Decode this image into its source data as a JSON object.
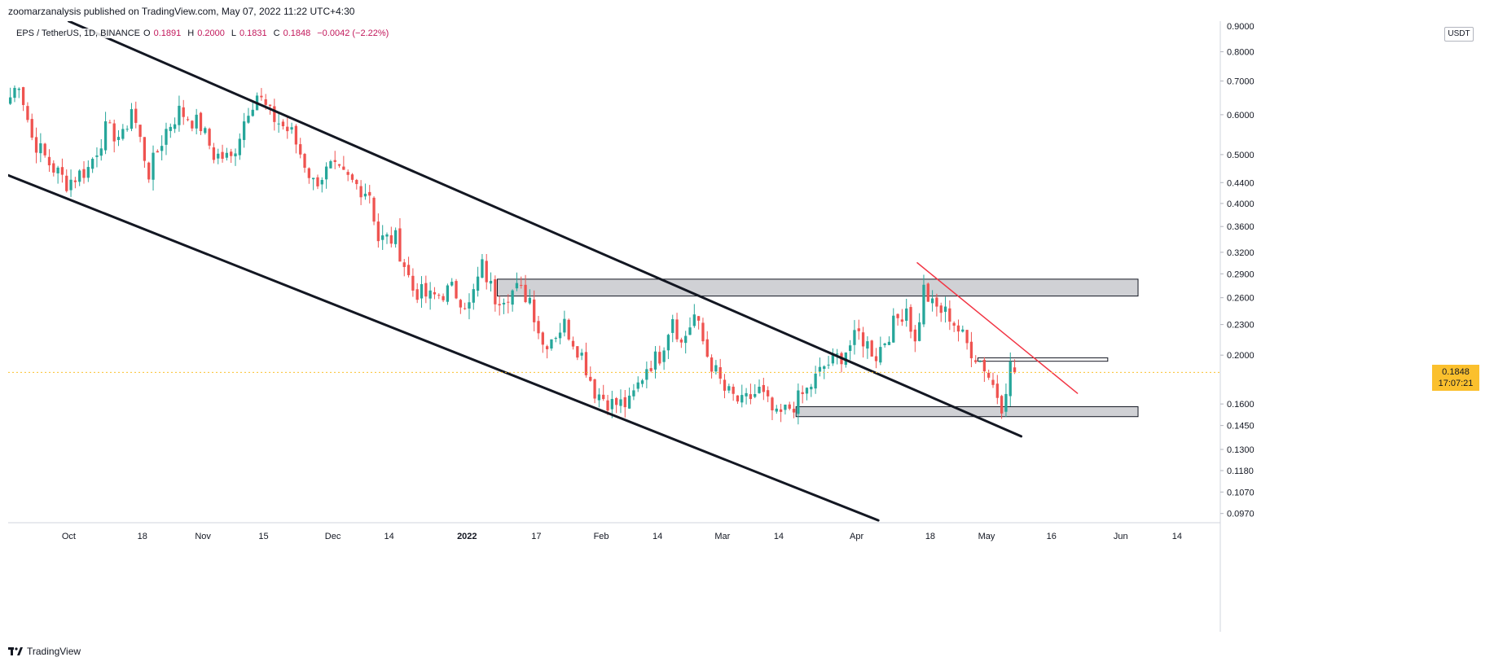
{
  "header": {
    "published_by": "zoomarzanalysis published on TradingView.com, May 07, 2022 11:22 UTC+4:30"
  },
  "legend": {
    "symbol": "EPS / TetherUS, 1D, BINANCE",
    "open_label": "O",
    "open": "0.1891",
    "high_label": "H",
    "high": "0.2000",
    "low_label": "L",
    "low": "0.1831",
    "close_label": "C",
    "close": "0.1848",
    "change": "−0.0042 (−2.22%)"
  },
  "price_axis": {
    "currency": "USDT",
    "ticks": [
      "0.8000",
      "0.7000",
      "0.6000",
      "0.5000",
      "0.4400",
      "0.4000",
      "0.3600",
      "0.3200",
      "0.2900",
      "0.2600",
      "0.2300",
      "0.2000",
      "0.1600",
      "0.1450",
      "0.1300",
      "0.1180",
      "0.1070",
      "0.0970"
    ],
    "top_partial": "0.9000"
  },
  "last_price": {
    "value": "0.1848",
    "countdown": "17:07:21",
    "color": "#fbc02d"
  },
  "footer": {
    "brand": "TradingView"
  },
  "chart_data": {
    "type": "candlestick",
    "symbol": "EPS/USDT",
    "interval": "1D",
    "exchange": "BINANCE",
    "y_scale": "log",
    "ylim": [
      0.093,
      0.92
    ],
    "x_range": [
      "2021-09-17",
      "2022-06-24"
    ],
    "up_color": "#26a69a",
    "down_color": "#ef5350",
    "tick_labels_x": [
      {
        "date": "2021-10-01",
        "label": "Oct"
      },
      {
        "date": "2021-10-18",
        "label": "18"
      },
      {
        "date": "2021-11-01",
        "label": "Nov"
      },
      {
        "date": "2021-11-15",
        "label": "15"
      },
      {
        "date": "2021-12-01",
        "label": "Dec"
      },
      {
        "date": "2021-12-14",
        "label": "14"
      },
      {
        "date": "2022-01-01",
        "label": "2022"
      },
      {
        "date": "2022-01-17",
        "label": "17"
      },
      {
        "date": "2022-02-01",
        "label": "Feb"
      },
      {
        "date": "2022-02-14",
        "label": "14"
      },
      {
        "date": "2022-03-01",
        "label": "Mar"
      },
      {
        "date": "2022-03-14",
        "label": "14"
      },
      {
        "date": "2022-04-01",
        "label": "Apr"
      },
      {
        "date": "2022-04-18",
        "label": "18"
      },
      {
        "date": "2022-05-01",
        "label": "May"
      },
      {
        "date": "2022-05-16",
        "label": "16"
      },
      {
        "date": "2022-06-01",
        "label": "Jun"
      },
      {
        "date": "2022-06-14",
        "label": "14"
      }
    ],
    "anchors": [
      {
        "date": "2021-09-17",
        "close": 0.65
      },
      {
        "date": "2021-09-19",
        "close": 0.7
      },
      {
        "date": "2021-09-22",
        "close": 0.54
      },
      {
        "date": "2021-09-26",
        "close": 0.48
      },
      {
        "date": "2021-09-30",
        "close": 0.44
      },
      {
        "date": "2021-10-05",
        "close": 0.47
      },
      {
        "date": "2021-10-09",
        "close": 0.56
      },
      {
        "date": "2021-10-13",
        "close": 0.54
      },
      {
        "date": "2021-10-15",
        "close": 0.62
      },
      {
        "date": "2021-10-19",
        "close": 0.46
      },
      {
        "date": "2021-10-23",
        "close": 0.56
      },
      {
        "date": "2021-10-26",
        "close": 0.61
      },
      {
        "date": "2021-10-31",
        "close": 0.57
      },
      {
        "date": "2021-11-03",
        "close": 0.5
      },
      {
        "date": "2021-11-07",
        "close": 0.49
      },
      {
        "date": "2021-11-11",
        "close": 0.62
      },
      {
        "date": "2021-11-13",
        "close": 0.66
      },
      {
        "date": "2021-11-16",
        "close": 0.6
      },
      {
        "date": "2021-11-21",
        "close": 0.55
      },
      {
        "date": "2021-11-26",
        "close": 0.44
      },
      {
        "date": "2021-11-30",
        "close": 0.47
      },
      {
        "date": "2021-12-05",
        "close": 0.44
      },
      {
        "date": "2021-12-09",
        "close": 0.42
      },
      {
        "date": "2021-12-11",
        "close": 0.34
      },
      {
        "date": "2021-12-15",
        "close": 0.34
      },
      {
        "date": "2021-12-19",
        "close": 0.27
      },
      {
        "date": "2021-12-23",
        "close": 0.26
      },
      {
        "date": "2021-12-28",
        "close": 0.27
      },
      {
        "date": "2022-01-01",
        "close": 0.25
      },
      {
        "date": "2022-01-04",
        "close": 0.3
      },
      {
        "date": "2022-01-07",
        "close": 0.26
      },
      {
        "date": "2022-01-12",
        "close": 0.27
      },
      {
        "date": "2022-01-15",
        "close": 0.26
      },
      {
        "date": "2022-01-18",
        "close": 0.21
      },
      {
        "date": "2022-01-23",
        "close": 0.23
      },
      {
        "date": "2022-01-27",
        "close": 0.2
      },
      {
        "date": "2022-01-30",
        "close": 0.17
      },
      {
        "date": "2022-02-03",
        "close": 0.16
      },
      {
        "date": "2022-02-07",
        "close": 0.16
      },
      {
        "date": "2022-02-11",
        "close": 0.19
      },
      {
        "date": "2022-02-14",
        "close": 0.2
      },
      {
        "date": "2022-02-17",
        "close": 0.24
      },
      {
        "date": "2022-02-19",
        "close": 0.21
      },
      {
        "date": "2022-02-22",
        "close": 0.24
      },
      {
        "date": "2022-02-25",
        "close": 0.2
      },
      {
        "date": "2022-03-01",
        "close": 0.17
      },
      {
        "date": "2022-03-05",
        "close": 0.16
      },
      {
        "date": "2022-03-09",
        "close": 0.17
      },
      {
        "date": "2022-03-13",
        "close": 0.15
      },
      {
        "date": "2022-03-17",
        "close": 0.16
      },
      {
        "date": "2022-03-20",
        "close": 0.17
      },
      {
        "date": "2022-03-24",
        "close": 0.19
      },
      {
        "date": "2022-03-28",
        "close": 0.2
      },
      {
        "date": "2022-04-01",
        "close": 0.22
      },
      {
        "date": "2022-04-05",
        "close": 0.2
      },
      {
        "date": "2022-04-09",
        "close": 0.23
      },
      {
        "date": "2022-04-12",
        "close": 0.25
      },
      {
        "date": "2022-04-14",
        "close": 0.21
      },
      {
        "date": "2022-04-16",
        "close": 0.27
      },
      {
        "date": "2022-04-18",
        "close": 0.25
      },
      {
        "date": "2022-04-22",
        "close": 0.24
      },
      {
        "date": "2022-04-26",
        "close": 0.21
      },
      {
        "date": "2022-04-30",
        "close": 0.19
      },
      {
        "date": "2022-05-04",
        "close": 0.16
      },
      {
        "date": "2022-05-06",
        "close": 0.19
      },
      {
        "date": "2022-05-07",
        "close": 0.1848
      }
    ],
    "drawings": {
      "channel_upper": [
        {
          "date": "2021-10-01",
          "price": 0.92
        },
        {
          "date": "2022-05-09",
          "price": 0.138
        }
      ],
      "channel_lower": [
        {
          "date": "2021-09-17",
          "price": 0.455
        },
        {
          "date": "2022-04-06",
          "price": 0.094
        }
      ],
      "descending_trendline": [
        {
          "date": "2022-04-15",
          "price": 0.305
        },
        {
          "date": "2022-05-22",
          "price": 0.168
        },
        {
          "color": "#f23645"
        }
      ],
      "resistance_zone": [
        {
          "date": "2022-01-08",
          "price": 0.283
        },
        {
          "date": "2022-06-05",
          "price": 0.262
        }
      ],
      "support_zone": [
        {
          "date": "2022-03-18",
          "price": 0.158
        },
        {
          "date": "2022-06-05",
          "price": 0.151
        }
      ],
      "minor_level": [
        {
          "date": "2022-04-29",
          "price": 0.1975
        },
        {
          "date": "2022-05-29",
          "price": 0.1945
        }
      ]
    }
  }
}
